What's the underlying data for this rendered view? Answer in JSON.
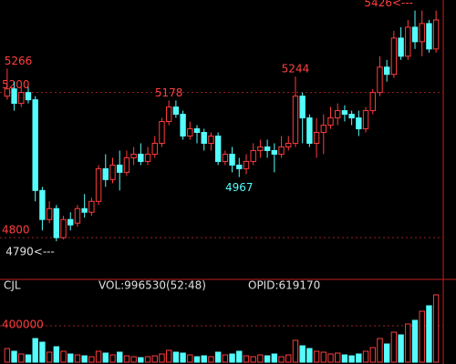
{
  "chart_data": {
    "type": "candlestick",
    "up_color": "#ff3c3c",
    "down_color": "#54fcfc",
    "open": [
      5190,
      5210,
      5170,
      5200,
      5180,
      4930,
      4850,
      4880,
      4800,
      4850,
      4840,
      4880,
      4870,
      4900,
      4990,
      4960,
      5000,
      4980,
      5020,
      5030,
      5010,
      5030,
      5060,
      5120,
      5160,
      5140,
      5080,
      5100,
      5090,
      5060,
      5080,
      5010,
      5030,
      5000,
      4990,
      5010,
      5040,
      5050,
      5040,
      5030,
      5050,
      5060,
      5190,
      5130,
      5060,
      5090,
      5110,
      5130,
      5150,
      5140,
      5130,
      5100,
      5150,
      5200,
      5270,
      5250,
      5350,
      5300,
      5380,
      5340,
      5390,
      5320
    ],
    "high": [
      5266,
      5230,
      5215,
      5215,
      5190,
      4940,
      4900,
      4890,
      4860,
      4870,
      4890,
      4920,
      4910,
      5000,
      5030,
      5020,
      5040,
      5040,
      5050,
      5060,
      5050,
      5080,
      5130,
      5178,
      5178,
      5150,
      5120,
      5110,
      5100,
      5090,
      5090,
      5040,
      5050,
      5020,
      5030,
      5060,
      5070,
      5070,
      5060,
      5080,
      5080,
      5244,
      5200,
      5140,
      5130,
      5140,
      5160,
      5170,
      5165,
      5150,
      5150,
      5160,
      5210,
      5300,
      5290,
      5370,
      5380,
      5400,
      5426,
      5426,
      5400,
      5426
    ],
    "low": [
      5180,
      5150,
      5160,
      5170,
      4900,
      4820,
      4840,
      4790,
      4795,
      4820,
      4830,
      4855,
      4860,
      4890,
      4940,
      4950,
      4930,
      4970,
      5000,
      5000,
      5000,
      5020,
      5050,
      5110,
      5130,
      5070,
      5070,
      5060,
      5040,
      5040,
      5000,
      5000,
      4980,
      4967,
      4975,
      5000,
      5020,
      5020,
      4980,
      5020,
      5040,
      5050,
      5060,
      5050,
      5020,
      5030,
      5100,
      5110,
      5120,
      5110,
      5080,
      5090,
      5140,
      5190,
      5230,
      5240,
      5290,
      5290,
      5320,
      5300,
      5310,
      5310
    ],
    "close": [
      5210,
      5170,
      5200,
      5180,
      4930,
      4850,
      4880,
      4800,
      4850,
      4835,
      4880,
      4870,
      4900,
      4990,
      4960,
      5000,
      4980,
      5020,
      5030,
      5010,
      5030,
      5060,
      5120,
      5160,
      5140,
      5080,
      5100,
      5090,
      5060,
      5080,
      5010,
      5030,
      5000,
      4990,
      5010,
      5040,
      5050,
      5040,
      5030,
      5050,
      5060,
      5190,
      5130,
      5060,
      5090,
      5110,
      5130,
      5150,
      5140,
      5130,
      5100,
      5150,
      5200,
      5270,
      5250,
      5350,
      5300,
      5380,
      5340,
      5390,
      5320,
      5400
    ],
    "volume": [
      150000,
      120000,
      90000,
      80000,
      260000,
      220000,
      110000,
      170000,
      120000,
      90000,
      80000,
      70000,
      60000,
      120000,
      100000,
      80000,
      110000,
      70000,
      60000,
      50000,
      60000,
      70000,
      90000,
      130000,
      110000,
      100000,
      80000,
      60000,
      70000,
      60000,
      110000,
      80000,
      90000,
      120000,
      70000,
      60000,
      80000,
      70000,
      90000,
      60000,
      80000,
      240000,
      180000,
      150000,
      120000,
      110000,
      90000,
      100000,
      80000,
      70000,
      90000,
      120000,
      160000,
      260000,
      200000,
      330000,
      300000,
      420000,
      460000,
      560000,
      620000,
      740000
    ],
    "ylim": [
      4690,
      5455
    ],
    "yticks": [
      4800,
      5200
    ],
    "vol_ylim": [
      0,
      780000
    ],
    "vol_ticks": [
      400000
    ],
    "high_labels": [
      5266,
      5178,
      5244,
      {
        "value": 5426,
        "label": "5426<---"
      }
    ],
    "low_labels": [
      4967,
      {
        "value": 4790,
        "label": "4790<---"
      }
    ],
    "volume_title": "CJL",
    "volume_label": "VOL:996530(52:48)",
    "oi_label": "OPID:619170"
  }
}
